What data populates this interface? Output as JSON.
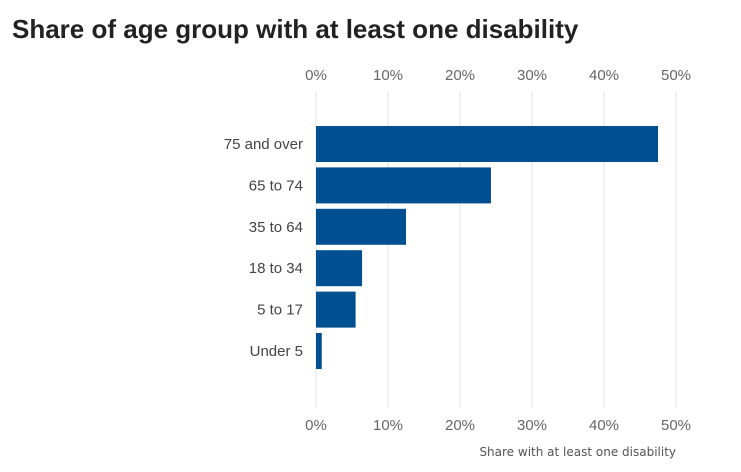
{
  "chart_data": {
    "type": "bar",
    "orientation": "horizontal",
    "title": "Share of age group with at least one disability",
    "categories": [
      "75 and over",
      "65 to 74",
      "35 to 64",
      "18 to 34",
      "5 to 17",
      "Under 5"
    ],
    "values": [
      47.5,
      24.3,
      12.5,
      6.4,
      5.5,
      0.8
    ],
    "xlabel": "Share with at least one disability",
    "ylabel": "",
    "xlim": [
      0,
      50
    ],
    "ticks": [
      0,
      10,
      20,
      30,
      40,
      50
    ],
    "tick_labels": [
      "0%",
      "10%",
      "20%",
      "30%",
      "40%",
      "50%"
    ],
    "grid": true,
    "bar_color": "#004f91"
  }
}
